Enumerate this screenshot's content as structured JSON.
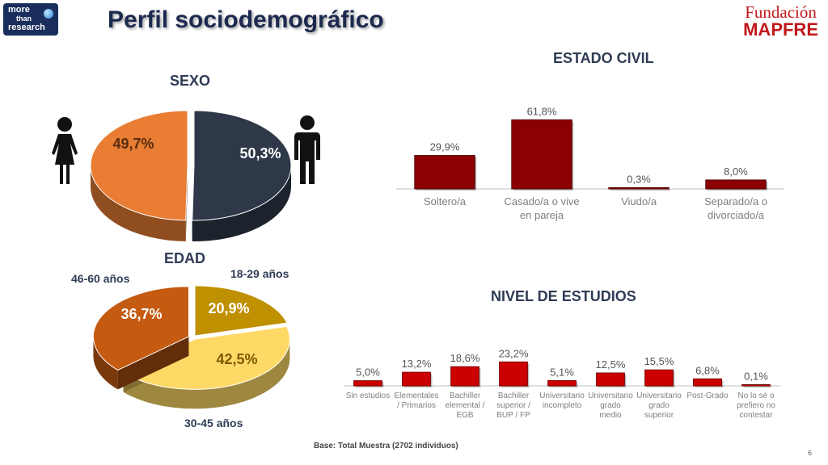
{
  "header": {
    "logo_line1": "more",
    "logo_line2": "than",
    "logo_line3": "research",
    "title": "Perfil sociodemográfico",
    "brand_line1": "Fundación",
    "brand_line2": "MAPFRE"
  },
  "footer": {
    "base": "Base: Total Muestra (2702 individuos)",
    "page": "6"
  },
  "chart_data": [
    {
      "type": "pie",
      "title": "SEXO",
      "slices": [
        {
          "label": "Mujer",
          "value": 49.7,
          "display": "49,7%",
          "color": "#e87d33"
        },
        {
          "label": "Hombre",
          "value": 50.3,
          "display": "50,3%",
          "color": "#2e3848"
        }
      ]
    },
    {
      "type": "pie",
      "title": "EDAD",
      "slices": [
        {
          "label": "18-29 años",
          "value": 20.9,
          "display": "20,9%",
          "color": "#bf9000"
        },
        {
          "label": "30-45 años",
          "value": 42.5,
          "display": "42,5%",
          "color": "#ffd966"
        },
        {
          "label": "46-60 años",
          "value": 36.7,
          "display": "36,7%",
          "color": "#c55a11"
        }
      ]
    },
    {
      "type": "bar",
      "title": "ESTADO CIVIL",
      "categories": [
        "Soltero/a",
        "Casado/a o vive en pareja",
        "Viudo/a",
        "Separado/a o divorciado/a"
      ],
      "category_lines": [
        [
          "Soltero/a"
        ],
        [
          "Casado/a o vive",
          "en pareja"
        ],
        [
          "Viudo/a"
        ],
        [
          "Separado/a o",
          "divorciado/a"
        ]
      ],
      "values": [
        29.9,
        61.8,
        0.3,
        8.0
      ],
      "labels": [
        "29,9%",
        "61,8%",
        "0,3%",
        "8,0%"
      ],
      "color": "#8b0000",
      "ylim": [
        0,
        65
      ]
    },
    {
      "type": "bar",
      "title": "NIVEL DE ESTUDIOS",
      "categories": [
        "Sin estudios",
        "Elementales / Primarios",
        "Bachiller elemental / EGB",
        "Bachiller superior / BUP / FP",
        "Universitario incompleto",
        "Universitario grado medio",
        "Universitario grado superior",
        "Post-Grado",
        "No lo sé o prefiero no contestar"
      ],
      "category_lines": [
        [
          "Sin estudios"
        ],
        [
          "Elementales",
          "/ Primarios"
        ],
        [
          "Bachiller",
          "elemental /",
          "EGB"
        ],
        [
          "Bachiller",
          "superior /",
          "BUP / FP"
        ],
        [
          "Universitario",
          "incompleto"
        ],
        [
          "Universitario",
          "grado",
          "medio"
        ],
        [
          "Universitario",
          "grado",
          "superior"
        ],
        [
          "Post-Grado"
        ],
        [
          "No lo sé o",
          "prefiero no",
          "contestar"
        ]
      ],
      "values": [
        5.0,
        13.2,
        18.6,
        23.2,
        5.1,
        12.5,
        15.5,
        6.8,
        0.1
      ],
      "labels": [
        "5,0%",
        "13,2%",
        "18,6%",
        "23,2%",
        "5,1%",
        "12,5%",
        "15,5%",
        "6,8%",
        "0,1%"
      ],
      "color": "#cc0000",
      "ylim": [
        0,
        25
      ]
    }
  ]
}
